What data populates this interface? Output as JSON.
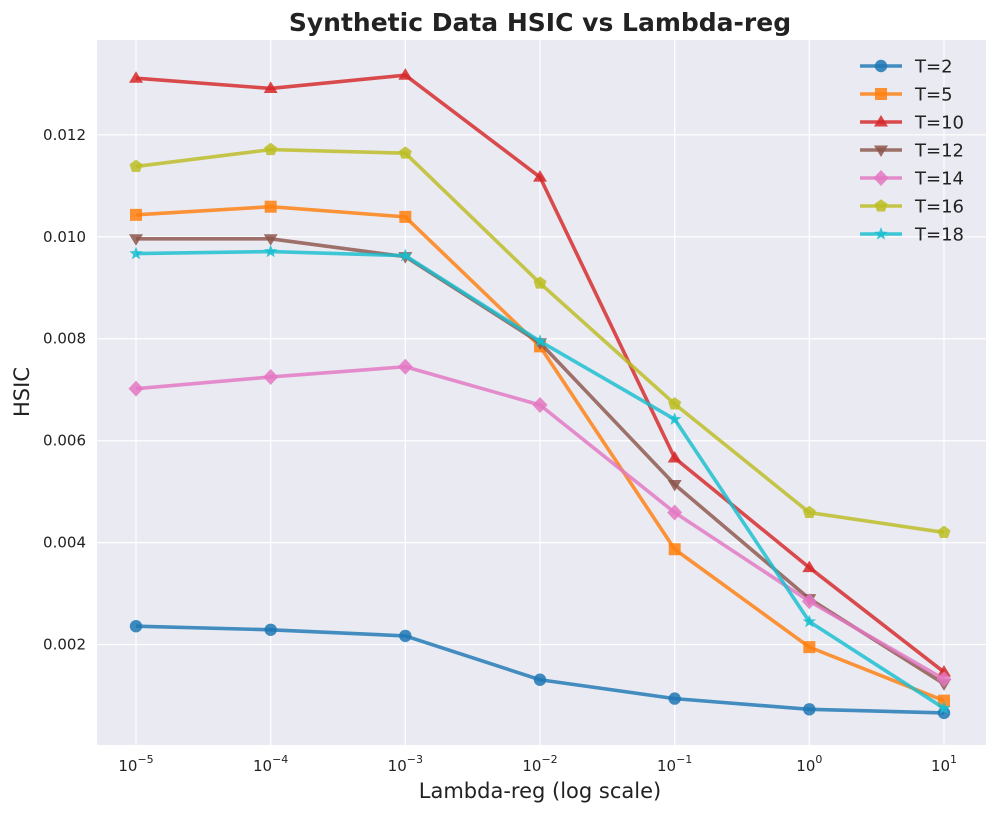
{
  "chart_data": {
    "type": "line",
    "title": "Synthetic Data HSIC vs Lambda-reg",
    "xlabel": "Lambda-reg (log scale)",
    "ylabel": "HSIC",
    "x_scale": "log",
    "x": [
      1e-05,
      0.0001,
      0.001,
      0.01,
      0.1,
      1,
      10
    ],
    "x_tick_labels": [
      {
        "base": "10",
        "exp": "−5"
      },
      {
        "base": "10",
        "exp": "−4"
      },
      {
        "base": "10",
        "exp": "−3"
      },
      {
        "base": "10",
        "exp": "−2"
      },
      {
        "base": "10",
        "exp": "−1"
      },
      {
        "base": "10",
        "exp": "0"
      },
      {
        "base": "10",
        "exp": "1"
      }
    ],
    "y_ticks": [
      0.002,
      0.004,
      0.006,
      0.008,
      0.01,
      0.012
    ],
    "y_tick_labels": [
      "0.002",
      "0.004",
      "0.006",
      "0.008",
      "0.010",
      "0.012"
    ],
    "ylim": [
      3e-05,
      0.01386
    ],
    "grid": true,
    "legend_position": "top-right",
    "series": [
      {
        "name": "T=2",
        "color": "#1f77b4",
        "marker": "circle",
        "values": [
          0.00236,
          0.00229,
          0.00217,
          0.00131,
          0.00094,
          0.00073,
          0.00066
        ]
      },
      {
        "name": "T=5",
        "color": "#ff7f0e",
        "marker": "square",
        "values": [
          0.01043,
          0.01059,
          0.01039,
          0.00785,
          0.00387,
          0.00195,
          0.0009
        ]
      },
      {
        "name": "T=10",
        "color": "#d62728",
        "marker": "triangle-up",
        "values": [
          0.01311,
          0.01291,
          0.01317,
          0.01117,
          0.00566,
          0.00351,
          0.00146
        ]
      },
      {
        "name": "T=12",
        "color": "#8c564b",
        "marker": "triangle-down",
        "values": [
          0.00996,
          0.00996,
          0.00961,
          0.00792,
          0.00514,
          0.0029,
          0.00123
        ]
      },
      {
        "name": "T=14",
        "color": "#e377c2",
        "marker": "diamond",
        "values": [
          0.00702,
          0.00725,
          0.00745,
          0.0067,
          0.00459,
          0.00285,
          0.00132
        ]
      },
      {
        "name": "T=16",
        "color": "#bcbd22",
        "marker": "pentagon",
        "values": [
          0.01138,
          0.01171,
          0.01164,
          0.00909,
          0.00672,
          0.00459,
          0.0042
        ]
      },
      {
        "name": "T=18",
        "color": "#17becf",
        "marker": "star",
        "values": [
          0.00967,
          0.00971,
          0.00963,
          0.00795,
          0.00642,
          0.00245,
          0.00075
        ]
      }
    ]
  }
}
